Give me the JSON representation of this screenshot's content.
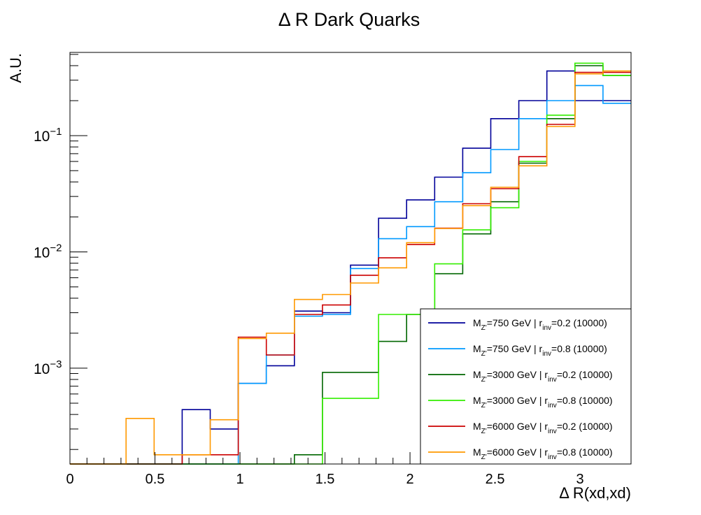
{
  "chart_data": {
    "type": "step-histogram",
    "title": "Δ R Dark Quarks",
    "xlabel": "Δ R(xd,xd)",
    "ylabel": "A.U.",
    "xlim": [
      0,
      3.3
    ],
    "ylim": [
      0.00015,
      0.52
    ],
    "y_scale": "log",
    "grid": false,
    "legend_position": "bottom-right",
    "x_ticks": [
      "0",
      "0.5",
      "1",
      "1.5",
      "2",
      "2.5",
      "3"
    ],
    "x_tick_values": [
      0,
      0.5,
      1,
      1.5,
      2,
      2.5,
      3
    ],
    "y_tick_exponents": [
      "-1",
      "-2",
      "-3"
    ],
    "y_tick_values": [
      0.1,
      0.01,
      0.001
    ],
    "bin_edges": [
      0,
      0.165,
      0.33,
      0.495,
      0.66,
      0.825,
      0.99,
      1.155,
      1.32,
      1.485,
      1.65,
      1.815,
      1.98,
      2.145,
      2.31,
      2.475,
      2.64,
      2.805,
      2.97,
      3.135,
      3.3
    ],
    "series": [
      {
        "name_main": "M",
        "name_sub": "Z'",
        "name_mid": "=750 GeV | r",
        "name_sub2": "inv",
        "name_tail": "=0.2 (10000)",
        "color": "#000099",
        "values": [
          0,
          0,
          0,
          0,
          0.00044,
          0.0003,
          0.00074,
          0.00105,
          0.0031,
          0.003,
          0.0077,
          0.0195,
          0.028,
          0.044,
          0.078,
          0.14,
          0.2,
          0.36,
          0.2,
          null
        ]
      },
      {
        "name_main": "M",
        "name_sub": "Z'",
        "name_mid": "=750 GeV | r",
        "name_sub2": "inv",
        "name_tail": "=0.8 (10000)",
        "color": "#0099ff",
        "values": [
          0,
          0,
          0,
          0,
          0,
          0,
          0.00074,
          0.0013,
          0.0028,
          0.0029,
          0.0072,
          0.013,
          0.0165,
          0.027,
          0.048,
          0.076,
          0.14,
          0.2,
          0.27,
          0.19
        ]
      },
      {
        "name_main": "M",
        "name_sub": "Z'",
        "name_mid": "=3000 GeV | r",
        "name_sub2": "inv",
        "name_tail": "=0.2 (10000)",
        "color": "#006600",
        "values": [
          0,
          0,
          0,
          0,
          0,
          0,
          0,
          0,
          0.00018,
          0.00092,
          0.00092,
          0.0017,
          0.0029,
          0.0065,
          0.0143,
          0.027,
          0.058,
          0.14,
          0.4,
          0.33
        ]
      },
      {
        "name_main": "M",
        "name_sub": "Z'",
        "name_mid": "=3000 GeV | r",
        "name_sub2": "inv",
        "name_tail": "=0.8 (10000)",
        "color": "#33ee00",
        "values": [
          0,
          0,
          0,
          0,
          0,
          0,
          0,
          0,
          0,
          0.00055,
          0.00055,
          0.0029,
          0.0029,
          0.0079,
          0.0155,
          0.024,
          0.06,
          0.15,
          0.42,
          0.33
        ]
      },
      {
        "name_main": "M",
        "name_sub": "Z'",
        "name_mid": "=6000 GeV | r",
        "name_sub2": "inv",
        "name_tail": "=0.2 (10000)",
        "color": "#cc0000",
        "values": [
          0,
          0,
          0,
          0,
          0.00018,
          0.00018,
          0.00185,
          0.0013,
          0.0029,
          0.0035,
          0.0063,
          0.0089,
          0.0116,
          0.016,
          0.026,
          0.035,
          0.066,
          0.125,
          0.35,
          0.35
        ]
      },
      {
        "name_main": "M",
        "name_sub": "Z'",
        "name_mid": "=6000 GeV | r",
        "name_sub2": "inv",
        "name_tail": "=0.8 (10000)",
        "color": "#ff9900",
        "values": [
          0,
          0,
          0.00037,
          0.00018,
          0.00018,
          0.00036,
          0.0018,
          0.002,
          0.0039,
          0.0043,
          0.0054,
          0.0073,
          0.012,
          0.0159,
          0.025,
          0.036,
          0.055,
          0.12,
          0.34,
          0.36
        ]
      }
    ]
  }
}
